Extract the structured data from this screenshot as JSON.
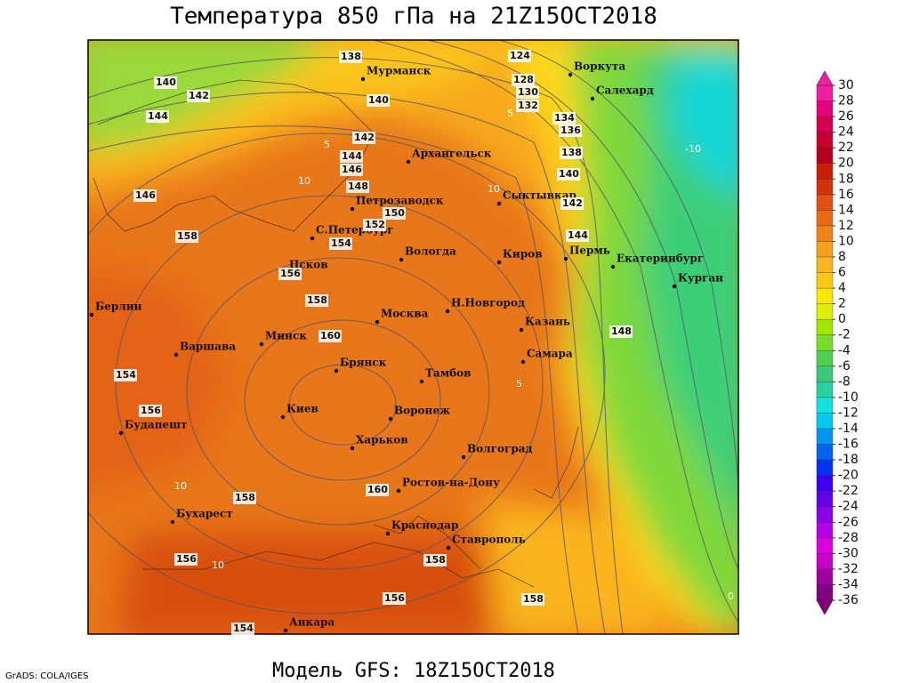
{
  "header": {
    "title": "Температура 850 гПа на 21Z15OCT2018"
  },
  "footer": {
    "model": "Модель GFS: 18Z15OCT2018",
    "credit": "GrADS: COLA/IGES"
  },
  "cities": [
    "Мурманск",
    "Воркута",
    "Салехард",
    "Архангельск",
    "Сыктывкар",
    "Петрозаводск",
    "С.Петербург",
    "Вологда",
    "Киров",
    "Пермь",
    "Екатеринбург",
    "Курган",
    "Псков",
    "Берлин",
    "Москва",
    "Н.Новгород",
    "Казань",
    "Минск",
    "Варшава",
    "Самара",
    "Брянск",
    "Тамбов",
    "Киев",
    "Воронеж",
    "Будапешт",
    "Харьков",
    "Волгоград",
    "Ростов-на-Дону",
    "Бухарест",
    "Краснодар",
    "Ставрополь",
    "Анкара"
  ],
  "height_labels": [
    138,
    124,
    140,
    142,
    140,
    128,
    130,
    132,
    144,
    134,
    136,
    142,
    144,
    138,
    146,
    140,
    148,
    146,
    142,
    150,
    152,
    144,
    154,
    158,
    156,
    158,
    160,
    148,
    154,
    156,
    158,
    160,
    156,
    158,
    156,
    158,
    154
  ],
  "temperature_labels": [
    10,
    5,
    10,
    -10,
    5,
    10,
    10,
    0,
    5
  ],
  "colorbar": {
    "levels": [
      30,
      28,
      26,
      24,
      22,
      20,
      18,
      16,
      14,
      12,
      10,
      8,
      6,
      4,
      2,
      0,
      -2,
      -4,
      -6,
      -8,
      -10,
      -12,
      -14,
      -16,
      -18,
      -20,
      -22,
      -24,
      -26,
      -28,
      -30,
      -32,
      -34,
      -36
    ],
    "colors": [
      "#f01ea0",
      "#e6007f",
      "#d60050",
      "#c80030",
      "#b4001e",
      "#c81e0a",
      "#d2320a",
      "#e05010",
      "#e86a14",
      "#f08218",
      "#f5a01e",
      "#fab41e",
      "#ffc814",
      "#ffe600",
      "#dcf000",
      "#a0e600",
      "#78dc28",
      "#50d050",
      "#3cc878",
      "#28d2a0",
      "#14e1dc",
      "#00c8f0",
      "#0096f0",
      "#0064f0",
      "#0032f0",
      "#3c00f0",
      "#6400e6",
      "#8c00e6",
      "#b400e6",
      "#dc00dc",
      "#c800c8",
      "#a000a0",
      "#800080"
    ]
  }
}
